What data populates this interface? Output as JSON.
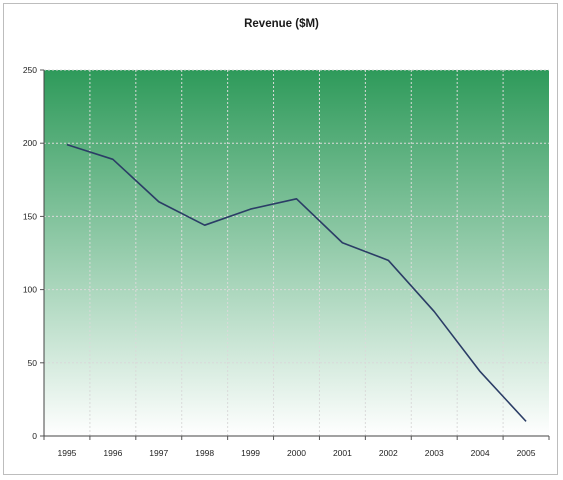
{
  "chart_data": {
    "type": "line",
    "title": "Revenue ($M)",
    "xlabel": "",
    "ylabel": "",
    "categories": [
      "1995",
      "1996",
      "1997",
      "1998",
      "1999",
      "2000",
      "2001",
      "2002",
      "2003",
      "2004",
      "2005"
    ],
    "series": [
      {
        "values": [
          199,
          189,
          160,
          144,
          155,
          162,
          132,
          120,
          85,
          44,
          10
        ],
        "color": "#2b3d66"
      }
    ],
    "ylim": [
      0,
      250
    ],
    "yticks": [
      "0",
      "50",
      "100",
      "150",
      "200",
      "250"
    ],
    "grid": true,
    "legend": "none",
    "colors": {
      "plot_gradient_top": "#2e9a5a",
      "plot_gradient_bottom": "#ffffff",
      "line": "#2b3d66",
      "grid": "#dadada"
    }
  }
}
